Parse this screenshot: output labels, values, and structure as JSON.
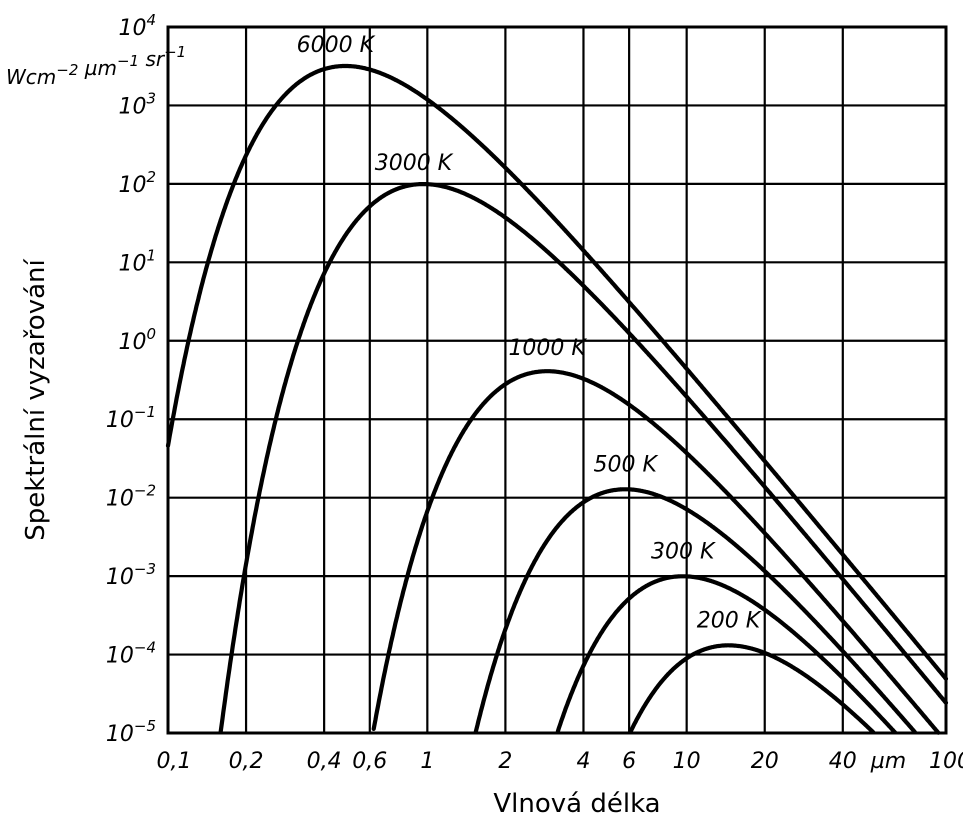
{
  "chart_data": {
    "type": "line",
    "xscale": "log",
    "yscale": "log",
    "xlabel": "Vlnová délka",
    "ylabel": "Spektrální vyzařování",
    "xlim": [
      0.1,
      100
    ],
    "ylim": [
      1e-05,
      10000
    ],
    "grid": true,
    "x_tick_labels": [
      {
        "value": 0.1,
        "label": "0,1"
      },
      {
        "value": 0.2,
        "label": "0,2"
      },
      {
        "value": 0.4,
        "label": "0,4"
      },
      {
        "value": 0.6,
        "label": "0,6"
      },
      {
        "value": 1,
        "label": "1"
      },
      {
        "value": 2,
        "label": "2"
      },
      {
        "value": 4,
        "label": "4"
      },
      {
        "value": 6,
        "label": "6"
      },
      {
        "value": 10,
        "label": "10"
      },
      {
        "value": 20,
        "label": "20"
      },
      {
        "value": 40,
        "label": "40"
      },
      {
        "value": 100,
        "label": "100"
      }
    ],
    "x_unit_label": "µm",
    "y_tick_labels": [
      {
        "exp": -5,
        "base": "10",
        "sup": "−5"
      },
      {
        "exp": -4,
        "base": "10",
        "sup": "−4"
      },
      {
        "exp": -3,
        "base": "10",
        "sup": "−3"
      },
      {
        "exp": -2,
        "base": "10",
        "sup": "−2"
      },
      {
        "exp": -1,
        "base": "10",
        "sup": "−1"
      },
      {
        "exp": 0,
        "base": "10",
        "sup": "0"
      },
      {
        "exp": 1,
        "base": "10",
        "sup": "1"
      },
      {
        "exp": 2,
        "base": "10",
        "sup": "2"
      },
      {
        "exp": 3,
        "base": "10",
        "sup": "3"
      },
      {
        "exp": 4,
        "base": "10",
        "sup": "4"
      }
    ],
    "y_unit_label": {
      "parts": [
        {
          "t": "Wcm",
          "sup": "−2"
        },
        {
          "t": " µm",
          "sup": "−1"
        },
        {
          "t": " sr",
          "sup": "−1"
        }
      ]
    },
    "series": [
      {
        "name": "6000 K",
        "temperature": 6000
      },
      {
        "name": "3000 K",
        "temperature": 3000
      },
      {
        "name": "1000 K",
        "temperature": 1000
      },
      {
        "name": "500 K",
        "temperature": 500
      },
      {
        "name": "300 K",
        "temperature": 300
      },
      {
        "name": "200 K",
        "temperature": 200
      }
    ]
  }
}
